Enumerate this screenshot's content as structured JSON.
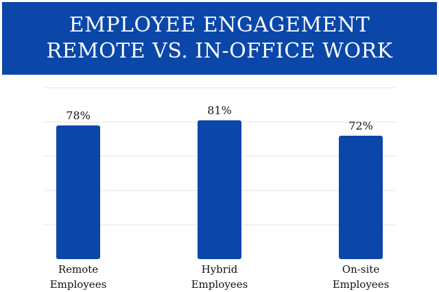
{
  "chart_data": {
    "type": "bar",
    "title_lines": [
      "EMPLOYEE ENGAGEMENT",
      "REMOTE VS. IN-OFFICE WORK"
    ],
    "categories": [
      [
        "Remote",
        "Employees"
      ],
      [
        "Hybrid",
        "Employees"
      ],
      [
        "On-site",
        "Employees"
      ]
    ],
    "values": [
      78,
      81,
      72
    ],
    "value_labels": [
      "78%",
      "81%",
      "72%"
    ],
    "ylim": [
      0,
      100
    ],
    "grid": true,
    "legend": "none",
    "colors": {
      "bar": "#0a47a9",
      "banner": "#0a47a9",
      "grid": "#e3e3e3"
    }
  }
}
